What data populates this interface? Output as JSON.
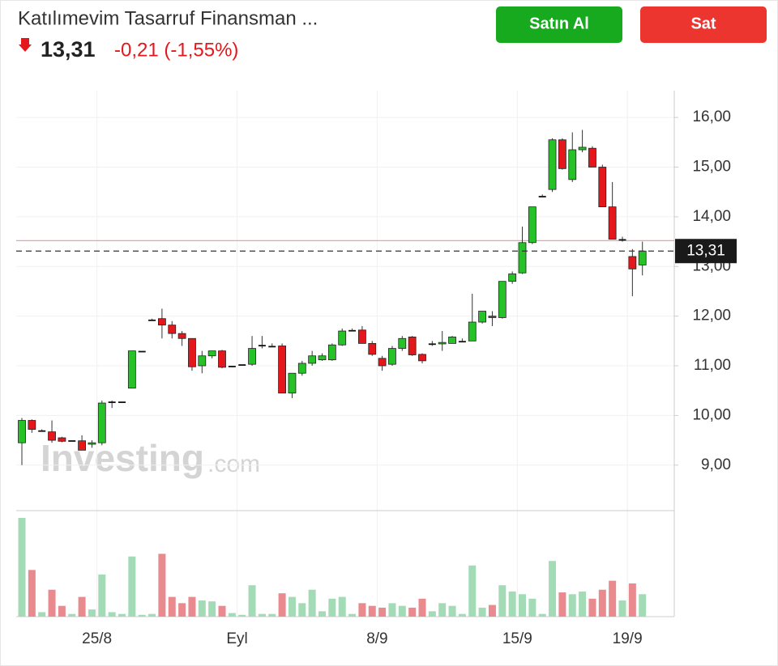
{
  "header": {
    "title": "Katılımevim Tasarruf Finansman ...",
    "price": "13,31",
    "change": "-0,21 (-1,55%)",
    "buy_button": "Satın Al",
    "sell_button": "Sat"
  },
  "chart_data": {
    "type": "candlestick",
    "watermark": [
      "Investing",
      ".com"
    ],
    "categories": [
      null,
      null,
      null,
      null,
      null,
      null,
      null,
      null,
      "25/8",
      null,
      null,
      null,
      null,
      null,
      null,
      null,
      null,
      null,
      null,
      null,
      null,
      null,
      "Eyl",
      null,
      null,
      null,
      null,
      null,
      null,
      null,
      null,
      null,
      null,
      null,
      null,
      null,
      "8/9",
      null,
      null,
      null,
      null,
      null,
      null,
      null,
      null,
      null,
      null,
      null,
      null,
      null,
      "15/9",
      null,
      null,
      null,
      null,
      null,
      null,
      null,
      null,
      null,
      null,
      "19/9",
      null
    ],
    "open": [
      9.45,
      9.9,
      9.7,
      9.67,
      9.55,
      9.5,
      9.49,
      9.42,
      9.45,
      10.28,
      10.28,
      10.55,
      11.3,
      11.93,
      11.95,
      11.82,
      11.65,
      11.55,
      11.0,
      11.2,
      11.3,
      11.0,
      11.03,
      11.03,
      11.42,
      11.4,
      11.4,
      10.45,
      10.85,
      11.05,
      11.12,
      11.12,
      11.42,
      11.72,
      11.72,
      11.45,
      11.15,
      11.03,
      11.35,
      11.58,
      11.23,
      11.45,
      11.45,
      11.45,
      11.5,
      11.5,
      11.88,
      12.0,
      11.97,
      12.7,
      12.87,
      13.48,
      14.42,
      14.55,
      15.55,
      14.75,
      15.35,
      15.38,
      15.0,
      14.2,
      13.55,
      13.2,
      13.03
    ],
    "high": [
      9.95,
      9.92,
      9.72,
      9.9,
      9.57,
      9.5,
      9.6,
      9.5,
      10.3,
      10.3,
      10.28,
      11.3,
      11.3,
      11.95,
      12.15,
      11.9,
      11.7,
      11.55,
      11.3,
      11.3,
      11.32,
      11.0,
      11.03,
      11.6,
      11.6,
      11.45,
      11.45,
      10.85,
      11.1,
      11.3,
      11.25,
      11.45,
      11.75,
      11.75,
      11.8,
      11.5,
      11.2,
      11.4,
      11.6,
      11.6,
      11.25,
      11.5,
      11.7,
      11.6,
      11.55,
      12.45,
      12.1,
      12.1,
      12.7,
      12.9,
      13.8,
      14.2,
      14.45,
      15.58,
      15.58,
      15.7,
      15.75,
      15.42,
      15.05,
      14.7,
      13.6,
      13.35,
      13.5
    ],
    "low": [
      9.0,
      9.65,
      9.68,
      9.45,
      9.46,
      9.5,
      9.3,
      9.35,
      9.4,
      10.15,
      10.28,
      10.55,
      11.3,
      11.93,
      11.55,
      11.55,
      11.4,
      10.9,
      10.85,
      11.15,
      10.95,
      11.0,
      11.03,
      11.0,
      11.35,
      11.4,
      10.45,
      10.35,
      10.8,
      11.0,
      11.1,
      11.1,
      11.4,
      11.72,
      11.45,
      11.2,
      10.9,
      11.0,
      11.3,
      11.2,
      11.05,
      11.4,
      11.3,
      11.45,
      11.5,
      11.5,
      11.85,
      11.8,
      11.95,
      12.65,
      12.85,
      13.45,
      14.42,
      14.5,
      14.95,
      14.7,
      15.3,
      15.0,
      14.2,
      13.55,
      13.5,
      12.4,
      12.82
    ],
    "close": [
      9.9,
      9.72,
      9.7,
      9.5,
      9.48,
      9.5,
      9.3,
      9.45,
      10.25,
      10.28,
      10.28,
      11.3,
      11.3,
      11.93,
      11.82,
      11.65,
      11.55,
      10.98,
      11.2,
      11.3,
      10.97,
      11.0,
      11.03,
      11.35,
      11.42,
      11.4,
      10.45,
      10.85,
      11.05,
      11.2,
      11.2,
      11.42,
      11.7,
      11.72,
      11.45,
      11.23,
      11.0,
      11.35,
      11.55,
      11.22,
      11.1,
      11.45,
      11.47,
      11.58,
      11.5,
      11.88,
      12.1,
      11.97,
      12.7,
      12.85,
      13.48,
      14.2,
      14.42,
      15.55,
      14.97,
      15.35,
      15.4,
      15.0,
      14.2,
      13.55,
      13.55,
      12.95,
      13.31
    ],
    "volume": [
      110,
      52,
      5,
      30,
      12,
      3,
      22,
      8,
      47,
      5,
      3,
      67,
      2,
      3,
      70,
      22,
      15,
      22,
      18,
      17,
      12,
      4,
      2,
      35,
      3,
      3,
      26,
      22,
      15,
      30,
      6,
      20,
      22,
      3,
      15,
      12,
      10,
      15,
      12,
      10,
      20,
      6,
      15,
      12,
      3,
      57,
      10,
      13,
      35,
      28,
      25,
      20,
      3,
      62,
      27,
      25,
      28,
      20,
      30,
      40,
      18,
      37,
      25
    ],
    "up_color": "#27c227",
    "down_color": "#e3171c",
    "flat_color": "#111111",
    "volume_up_color": "#a3dbb6",
    "volume_down_color": "#e98a8f",
    "ylim": [
      8.1,
      16.54
    ],
    "yticks": [
      {
        "value": 9,
        "label": "9,00"
      },
      {
        "value": 10,
        "label": "10,00"
      },
      {
        "value": 11,
        "label": "11,00"
      },
      {
        "value": 12,
        "label": "12,00"
      },
      {
        "value": 13,
        "label": "13,00"
      },
      {
        "value": 14,
        "label": "14,00"
      },
      {
        "value": 15,
        "label": "15,00"
      },
      {
        "value": 16,
        "label": "16,00"
      }
    ],
    "last_price": {
      "value": 13.31,
      "label": "13,31"
    },
    "reference_line": 13.52,
    "grid": true
  }
}
